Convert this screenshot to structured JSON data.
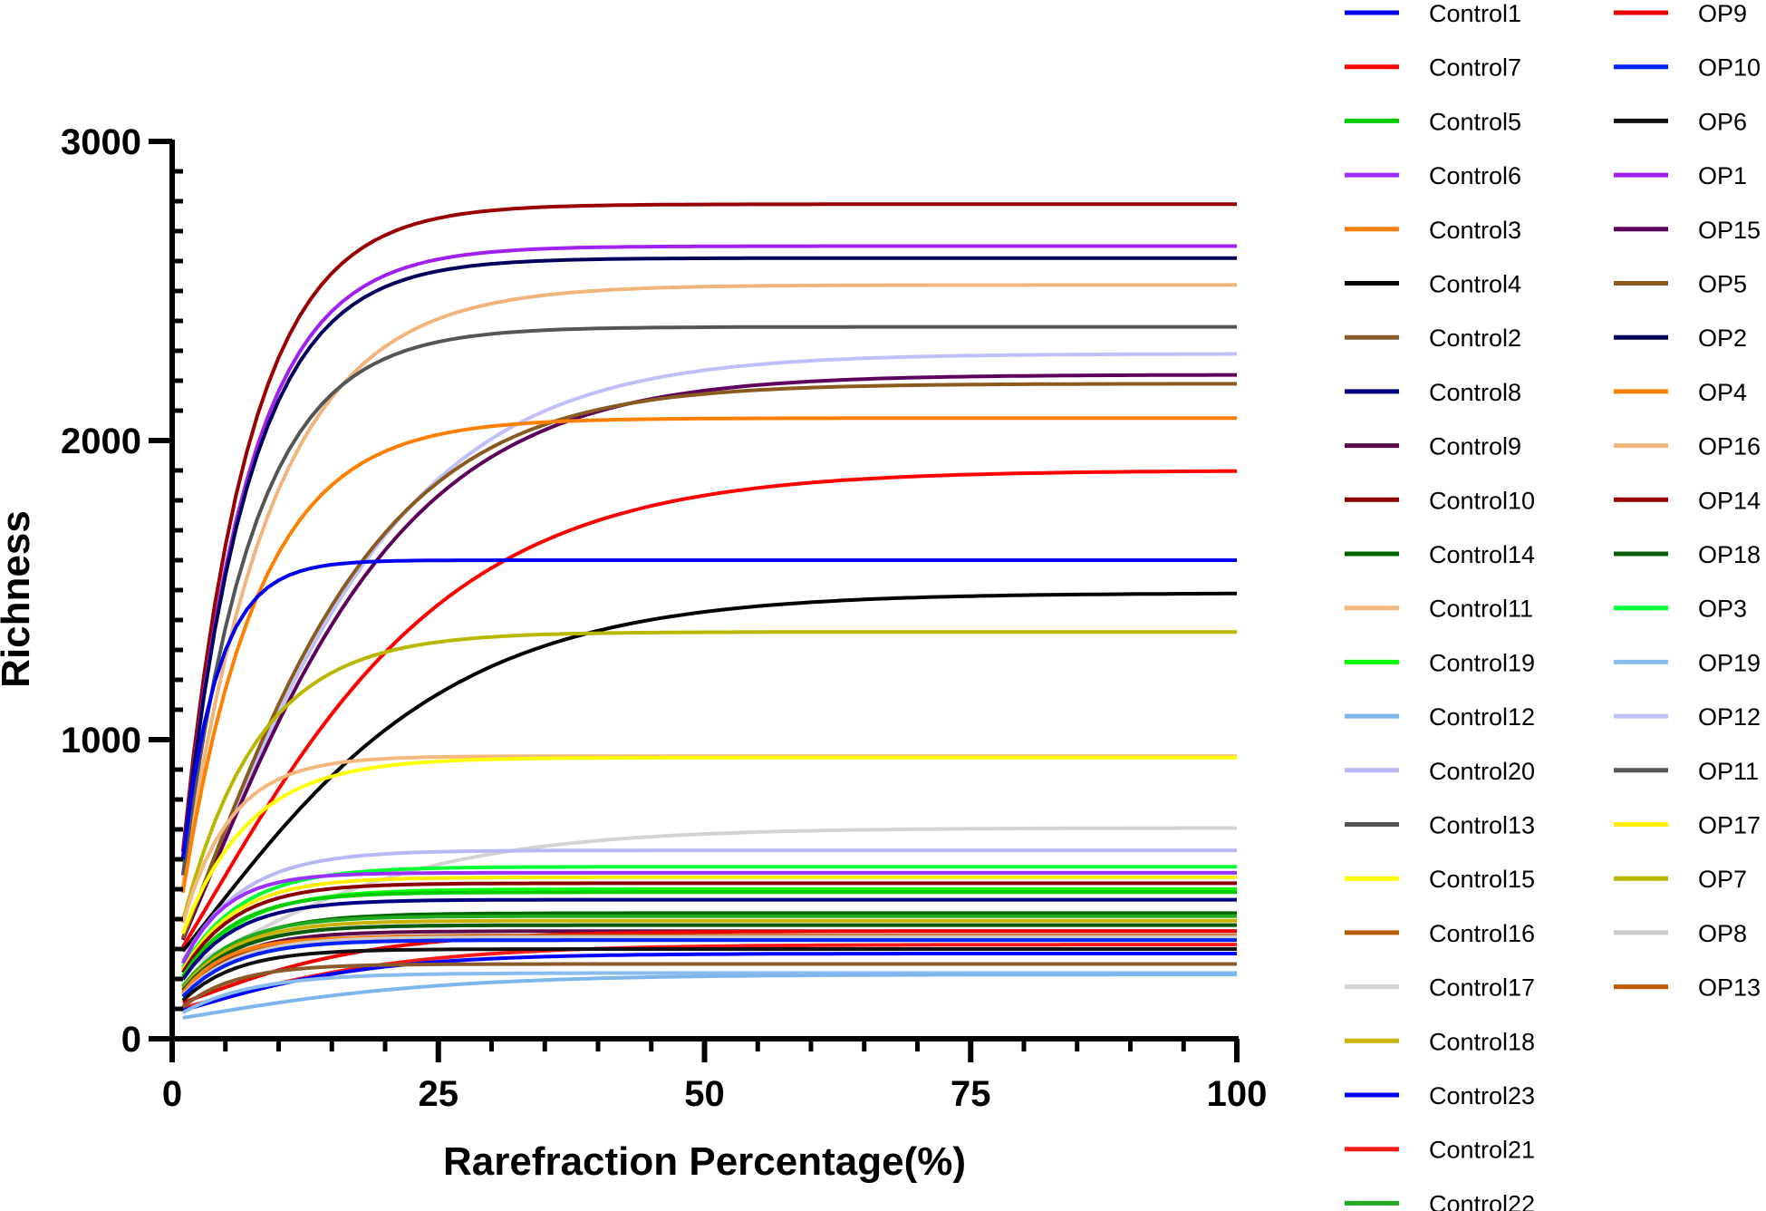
{
  "chart_data": {
    "type": "line",
    "title": "",
    "xlabel": "Rarefraction Percentage(%)",
    "ylabel": "Richness",
    "xlim": [
      0,
      100
    ],
    "ylim": [
      0,
      3000
    ],
    "xticks": [
      0,
      25,
      50,
      75,
      100
    ],
    "xtick_labels": [
      "0",
      "25",
      "50",
      "75",
      "100"
    ],
    "yticks": [
      0,
      1000,
      2000,
      3000
    ],
    "ytick_labels": [
      "0",
      "1000",
      "2000",
      "3000"
    ],
    "legend_position": "right",
    "curve_note": "Each series saturates toward its plateau value; values listed are plateau richness at 100%.",
    "series": [
      {
        "name": "Control1",
        "color": "#0000ee",
        "plateau": 1600,
        "rate": 0.3,
        "shape": "fast"
      },
      {
        "name": "Control7",
        "color": "#ff0000",
        "plateau": 1900,
        "rate": 0.085,
        "shape": "slow"
      },
      {
        "name": "Control5",
        "color": "#00cc00",
        "plateau": 490,
        "rate": 0.2,
        "shape": "fast"
      },
      {
        "name": "Control6",
        "color": "#9b30ff",
        "plateau": 555,
        "rate": 0.25,
        "shape": "fast"
      },
      {
        "name": "Control3",
        "color": "#ff7f0e",
        "plateau": 340,
        "rate": 0.25,
        "shape": "fast"
      },
      {
        "name": "Control4",
        "color": "#000000",
        "plateau": 1490,
        "rate": 0.085,
        "shape": "slow"
      },
      {
        "name": "Control2",
        "color": "#8b5a2b",
        "plateau": 250,
        "rate": 0.2,
        "shape": "fast"
      },
      {
        "name": "Control8",
        "color": "#000080",
        "plateau": 465,
        "rate": 0.2,
        "shape": "fast"
      },
      {
        "name": "Control9",
        "color": "#5c0a4a",
        "plateau": 360,
        "rate": 0.2,
        "shape": "fast"
      },
      {
        "name": "Control10",
        "color": "#8b0000",
        "plateau": 520,
        "rate": 0.2,
        "shape": "fast"
      },
      {
        "name": "Control14",
        "color": "#006400",
        "plateau": 420,
        "rate": 0.18,
        "shape": "fast"
      },
      {
        "name": "Control11",
        "color": "#f4b77e",
        "plateau": 945,
        "rate": 0.22,
        "shape": "fast"
      },
      {
        "name": "Control19",
        "color": "#00ff00",
        "plateau": 500,
        "rate": 0.18,
        "shape": "fast"
      },
      {
        "name": "Control12",
        "color": "#7eb6ec",
        "plateau": 215,
        "rate": 0.09,
        "shape": "slow"
      },
      {
        "name": "Control20",
        "color": "#b8b8f5",
        "plateau": 630,
        "rate": 0.18,
        "shape": "fast"
      },
      {
        "name": "Control13",
        "color": "#555555",
        "plateau": 380,
        "rate": 0.2,
        "shape": "fast"
      },
      {
        "name": "Control15",
        "color": "#ffff00",
        "plateau": 940,
        "rate": 0.16,
        "shape": "fast"
      },
      {
        "name": "Control16",
        "color": "#b85c00",
        "plateau": 330,
        "rate": 0.2,
        "shape": "fast"
      },
      {
        "name": "Control17",
        "color": "#d3d3d3",
        "plateau": 705,
        "rate": 0.09,
        "shape": "slow"
      },
      {
        "name": "Control18",
        "color": "#c8b400",
        "plateau": 395,
        "rate": 0.2,
        "shape": "fast"
      },
      {
        "name": "Control23",
        "color": "#0000ff",
        "plateau": 285,
        "rate": 0.12,
        "shape": "slow"
      },
      {
        "name": "Control21",
        "color": "#ff1a1a",
        "plateau": 315,
        "rate": 0.1,
        "shape": "slow"
      },
      {
        "name": "Control22",
        "color": "#22aa22",
        "plateau": 410,
        "rate": 0.2,
        "shape": "fast"
      },
      {
        "name": "OP9",
        "color": "#ee0000",
        "plateau": 360,
        "rate": 0.12,
        "shape": "slow"
      },
      {
        "name": "OP10",
        "color": "#0022ff",
        "plateau": 330,
        "rate": 0.2,
        "shape": "fast"
      },
      {
        "name": "OP6",
        "color": "#111111",
        "plateau": 300,
        "rate": 0.2,
        "shape": "fast"
      },
      {
        "name": "OP1",
        "color": "#a020f0",
        "plateau": 2650,
        "rate": 0.16,
        "shape": "fast"
      },
      {
        "name": "OP15",
        "color": "#5c005c",
        "plateau": 2220,
        "rate": 0.1,
        "shape": "slow"
      },
      {
        "name": "OP5",
        "color": "#8b5a1e",
        "plateau": 2190,
        "rate": 0.11,
        "shape": "slow"
      },
      {
        "name": "OP2",
        "color": "#00005c",
        "plateau": 2610,
        "rate": 0.16,
        "shape": "fast"
      },
      {
        "name": "OP4",
        "color": "#ff8000",
        "plateau": 2075,
        "rate": 0.14,
        "shape": "fast"
      },
      {
        "name": "OP16",
        "color": "#f0b47c",
        "plateau": 2520,
        "rate": 0.12,
        "shape": "fast"
      },
      {
        "name": "OP14",
        "color": "#990000",
        "plateau": 2790,
        "rate": 0.16,
        "shape": "fast"
      },
      {
        "name": "OP18",
        "color": "#0a5c0a",
        "plateau": 380,
        "rate": 0.2,
        "shape": "fast"
      },
      {
        "name": "OP3",
        "color": "#00ff33",
        "plateau": 575,
        "rate": 0.18,
        "shape": "fast"
      },
      {
        "name": "OP19",
        "color": "#88bbee",
        "plateau": 220,
        "rate": 0.15,
        "shape": "fast"
      },
      {
        "name": "OP12",
        "color": "#c0c0f8",
        "plateau": 2290,
        "rate": 0.1,
        "shape": "slow"
      },
      {
        "name": "OP11",
        "color": "#555555",
        "plateau": 2380,
        "rate": 0.15,
        "shape": "fast"
      },
      {
        "name": "OP17",
        "color": "#ffee00",
        "plateau": 540,
        "rate": 0.2,
        "shape": "fast"
      },
      {
        "name": "OP7",
        "color": "#b8b800",
        "plateau": 1360,
        "rate": 0.14,
        "shape": "fast"
      },
      {
        "name": "OP8",
        "color": "#cccccc",
        "plateau": 340,
        "rate": 0.2,
        "shape": "fast"
      },
      {
        "name": "OP13",
        "color": "#c05a00",
        "plateau": 345,
        "rate": 0.2,
        "shape": "fast"
      }
    ]
  }
}
